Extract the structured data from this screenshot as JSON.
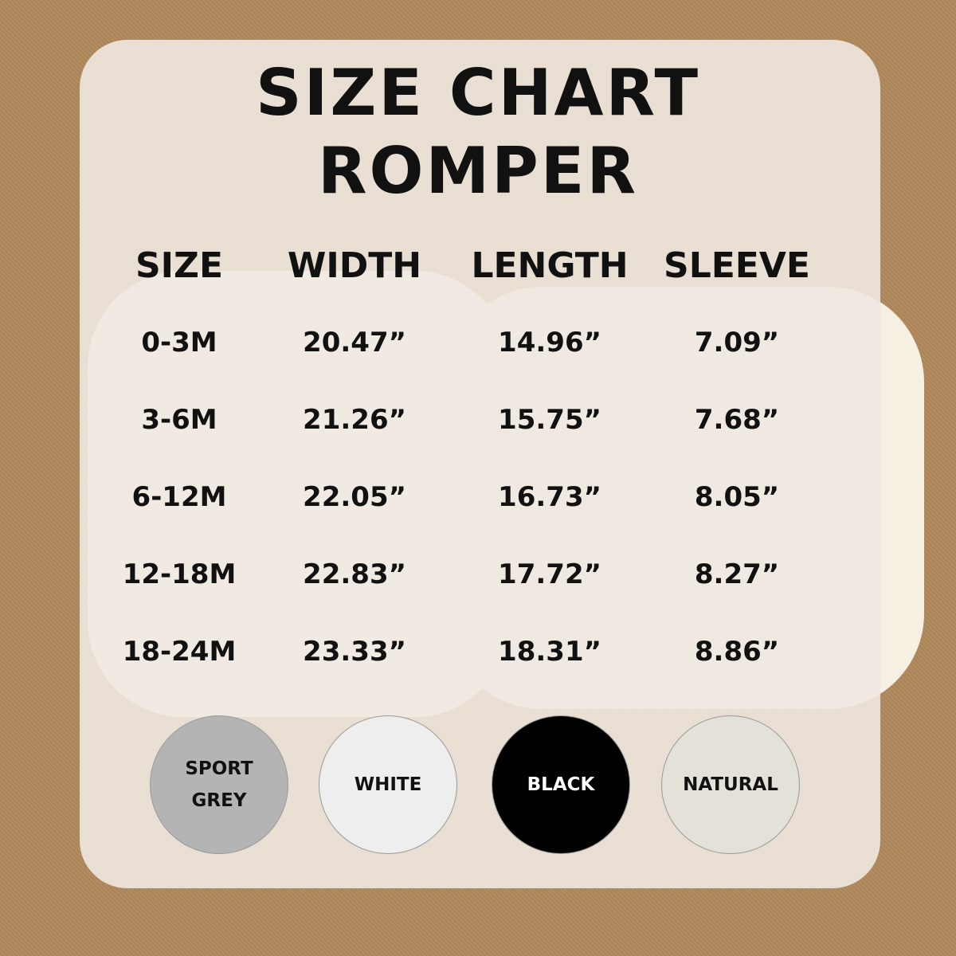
{
  "title": "SIZE CHART",
  "subtitle": "ROMPER",
  "headers": [
    "SIZE",
    "WIDTH",
    "LENGTH",
    "SLEEVE"
  ],
  "rows": [
    [
      "0-3M",
      "20.47”",
      "14.96”",
      "7.09”"
    ],
    [
      "3-6M",
      "21.26”",
      "15.75”",
      "7.68”"
    ],
    [
      "6-12M",
      "22.05”",
      "16.73”",
      "8.05”"
    ],
    [
      "12-18M",
      "22.83”",
      "17.72”",
      "8.27”"
    ],
    [
      "18-24M",
      "23.33”",
      "18.31”",
      "8.86”"
    ]
  ],
  "colors": [
    {
      "label": "SPORT GREY",
      "hex": "#b4b4b4",
      "text": "#111"
    },
    {
      "label": "WHITE",
      "hex": "#eeeeef",
      "text": "#111"
    },
    {
      "label": "BLACK",
      "hex": "#000000",
      "text": "#ffffff"
    },
    {
      "label": "NATURAL",
      "hex": "#e3e1d8",
      "text": "#111"
    }
  ]
}
